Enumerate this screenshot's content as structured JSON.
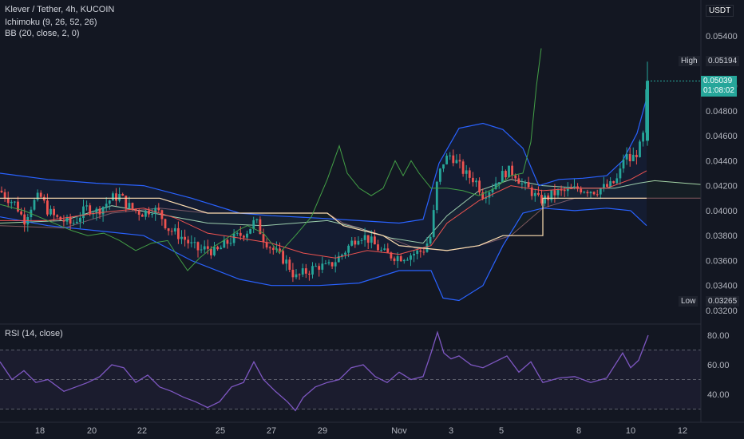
{
  "header": {
    "symbol_line": "Klever / Tether, 4h, KUCOIN",
    "ichimoku_label": "Ichimoku (9, 26, 52, 26)",
    "bb_label": "BB (20, close, 2, 0)",
    "rsi_label": "RSI (14, close)"
  },
  "price_axis": {
    "currency": "USDT",
    "ticks": [
      "0.05400",
      "0.05200",
      "0.05000",
      "0.04800",
      "0.04600",
      "0.04400",
      "0.04200",
      "0.04000",
      "0.03800",
      "0.03600",
      "0.03400",
      "0.03200"
    ],
    "high_label": "High",
    "high_value": "0.05194",
    "low_label": "Low",
    "low_value": "0.03265",
    "last_price": "0.05039",
    "countdown": "01:08:02"
  },
  "rsi_axis": {
    "ticks": [
      "80.00",
      "60.00",
      "40.00"
    ]
  },
  "time_axis": {
    "ticks": [
      "18",
      "20",
      "22",
      "25",
      "27",
      "29",
      "Nov",
      "3",
      "5",
      "8",
      "10",
      "12"
    ]
  },
  "colors": {
    "up": "#26a69a",
    "down": "#ef5350",
    "bb": "#2962ff",
    "tenkan": "#ef5350",
    "kijun": "#ffe0b2",
    "chikou": "#43a047",
    "rsi": "#7e57c2",
    "background": "#131722"
  },
  "chart_data": [
    {
      "type": "candlestick",
      "title": "Klever / Tether, 4h, KUCOIN",
      "xlabel": "",
      "ylabel": "USDT",
      "ylim": [
        0.032,
        0.055
      ],
      "x_ticks": [
        "18",
        "20",
        "22",
        "25",
        "27",
        "29",
        "Nov",
        "3",
        "5",
        "8",
        "10",
        "12"
      ],
      "y_ticks": [
        0.054,
        0.052,
        0.05,
        0.048,
        0.046,
        0.044,
        0.042,
        0.04,
        0.038,
        0.036,
        0.034,
        0.032
      ],
      "high": 0.05194,
      "low": 0.03265,
      "last": 0.05039,
      "close_path": [
        [
          0,
          0.0416
        ],
        [
          10,
          0.041
        ],
        [
          20,
          0.0405
        ],
        [
          30,
          0.0392
        ],
        [
          40,
          0.0405
        ],
        [
          50,
          0.0412
        ],
        [
          60,
          0.04
        ],
        [
          70,
          0.0394
        ],
        [
          80,
          0.0392
        ],
        [
          90,
          0.0389
        ],
        [
          100,
          0.0396
        ],
        [
          110,
          0.0403
        ],
        [
          120,
          0.0399
        ],
        [
          130,
          0.0404
        ],
        [
          140,
          0.041
        ],
        [
          150,
          0.0412
        ],
        [
          160,
          0.0404
        ],
        [
          170,
          0.04
        ],
        [
          180,
          0.0398
        ],
        [
          190,
          0.0402
        ],
        [
          200,
          0.0398
        ],
        [
          210,
          0.0386
        ],
        [
          220,
          0.0382
        ],
        [
          230,
          0.0378
        ],
        [
          240,
          0.0372
        ],
        [
          250,
          0.0368
        ],
        [
          260,
          0.037
        ],
        [
          270,
          0.0366
        ],
        [
          280,
          0.0372
        ],
        [
          290,
          0.0377
        ],
        [
          300,
          0.038
        ],
        [
          310,
          0.0384
        ],
        [
          320,
          0.0392
        ],
        [
          330,
          0.0378
        ],
        [
          340,
          0.037
        ],
        [
          350,
          0.0364
        ],
        [
          360,
          0.0358
        ],
        [
          370,
          0.0346
        ],
        [
          380,
          0.035
        ],
        [
          390,
          0.0353
        ],
        [
          400,
          0.0356
        ],
        [
          410,
          0.0354
        ],
        [
          420,
          0.036
        ],
        [
          430,
          0.0366
        ],
        [
          440,
          0.0374
        ],
        [
          450,
          0.0381
        ],
        [
          460,
          0.0378
        ],
        [
          470,
          0.0372
        ],
        [
          480,
          0.0366
        ],
        [
          490,
          0.0364
        ],
        [
          500,
          0.0363
        ],
        [
          510,
          0.0364
        ],
        [
          520,
          0.0366
        ],
        [
          530,
          0.0368
        ],
        [
          540,
          0.038
        ],
        [
          548,
          0.0425
        ],
        [
          556,
          0.044
        ],
        [
          565,
          0.0445
        ],
        [
          575,
          0.0436
        ],
        [
          585,
          0.0428
        ],
        [
          595,
          0.0425
        ],
        [
          605,
          0.0413
        ],
        [
          615,
          0.0418
        ],
        [
          625,
          0.0426
        ],
        [
          635,
          0.0432
        ],
        [
          645,
          0.043
        ],
        [
          655,
          0.042
        ],
        [
          665,
          0.0416
        ],
        [
          675,
          0.0408
        ],
        [
          685,
          0.041
        ],
        [
          695,
          0.0414
        ],
        [
          705,
          0.0415
        ],
        [
          715,
          0.0416
        ],
        [
          725,
          0.0418
        ],
        [
          735,
          0.0417
        ],
        [
          745,
          0.0416
        ],
        [
          755,
          0.0418
        ],
        [
          765,
          0.042
        ],
        [
          775,
          0.0426
        ],
        [
          782,
          0.0445
        ],
        [
          790,
          0.044
        ],
        [
          798,
          0.0447
        ],
        [
          805,
          0.0455
        ],
        [
          811,
          0.0504
        ]
      ],
      "series": [
        {
          "name": "BB (20, close, 2, 0)",
          "upper": [
            [
              0,
              0.043
            ],
            [
              60,
              0.0425
            ],
            [
              120,
              0.0422
            ],
            [
              180,
              0.042
            ],
            [
              240,
              0.041
            ],
            [
              300,
              0.0398
            ],
            [
              340,
              0.0396
            ],
            [
              400,
              0.0394
            ],
            [
              450,
              0.0392
            ],
            [
              500,
              0.039
            ],
            [
              530,
              0.0393
            ],
            [
              550,
              0.0438
            ],
            [
              575,
              0.0466
            ],
            [
              605,
              0.047
            ],
            [
              630,
              0.0465
            ],
            [
              655,
              0.045
            ],
            [
              675,
              0.042
            ],
            [
              700,
              0.0425
            ],
            [
              730,
              0.0426
            ],
            [
              760,
              0.0428
            ],
            [
              780,
              0.044
            ],
            [
              798,
              0.0462
            ],
            [
              810,
              0.049
            ]
          ]
        },
        {
          "name": "BB lower",
          "lower": [
            [
              0,
              0.0395
            ],
            [
              60,
              0.0388
            ],
            [
              120,
              0.0384
            ],
            [
              180,
              0.038
            ],
            [
              240,
              0.036
            ],
            [
              300,
              0.0345
            ],
            [
              340,
              0.034
            ],
            [
              400,
              0.034
            ],
            [
              450,
              0.0342
            ],
            [
              500,
              0.0352
            ],
            [
              540,
              0.0352
            ],
            [
              555,
              0.033
            ],
            [
              575,
              0.0328
            ],
            [
              605,
              0.034
            ],
            [
              630,
              0.0372
            ],
            [
              655,
              0.0398
            ],
            [
              680,
              0.0402
            ],
            [
              720,
              0.04
            ],
            [
              760,
              0.0402
            ],
            [
              790,
              0.04
            ],
            [
              810,
              0.0388
            ]
          ]
        },
        {
          "name": "Kijun",
          "values": [
            [
              0,
              0.041
            ],
            [
              100,
              0.041
            ],
            [
              200,
              0.041
            ],
            [
              260,
              0.0398
            ],
            [
              410,
              0.0398
            ],
            [
              430,
              0.0388
            ],
            [
              480,
              0.038
            ],
            [
              500,
              0.0372
            ],
            [
              530,
              0.037
            ],
            [
              560,
              0.0368
            ],
            [
              600,
              0.0372
            ],
            [
              630,
              0.038
            ],
            [
              680,
              0.038
            ],
            [
              680,
              0.041
            ],
            [
              810,
              0.041
            ]
          ]
        }
      ]
    },
    {
      "type": "line",
      "title": "RSI (14, close)",
      "xlabel": "",
      "ylabel": "",
      "ylim": [
        25,
        90
      ],
      "y_ticks": [
        80,
        60,
        40
      ],
      "series": [
        {
          "name": "RSI (14, close)",
          "values": [
            [
              0,
              62
            ],
            [
              15,
              50
            ],
            [
              30,
              56
            ],
            [
              45,
              48
            ],
            [
              60,
              50
            ],
            [
              80,
              42
            ],
            [
              95,
              45
            ],
            [
              110,
              48
            ],
            [
              125,
              52
            ],
            [
              140,
              60
            ],
            [
              155,
              58
            ],
            [
              170,
              48
            ],
            [
              185,
              53
            ],
            [
              200,
              45
            ],
            [
              215,
              42
            ],
            [
              230,
              38
            ],
            [
              245,
              35
            ],
            [
              260,
              31
            ],
            [
              275,
              35
            ],
            [
              290,
              45
            ],
            [
              305,
              48
            ],
            [
              318,
              62
            ],
            [
              330,
              50
            ],
            [
              345,
              42
            ],
            [
              360,
              35
            ],
            [
              370,
              29
            ],
            [
              380,
              38
            ],
            [
              395,
              45
            ],
            [
              410,
              48
            ],
            [
              425,
              50
            ],
            [
              440,
              58
            ],
            [
              455,
              60
            ],
            [
              470,
              52
            ],
            [
              485,
              48
            ],
            [
              500,
              55
            ],
            [
              515,
              50
            ],
            [
              530,
              52
            ],
            [
              540,
              68
            ],
            [
              548,
              82
            ],
            [
              556,
              68
            ],
            [
              565,
              64
            ],
            [
              575,
              66
            ],
            [
              590,
              60
            ],
            [
              605,
              58
            ],
            [
              620,
              62
            ],
            [
              635,
              66
            ],
            [
              650,
              55
            ],
            [
              665,
              62
            ],
            [
              680,
              48
            ],
            [
              700,
              51
            ],
            [
              720,
              52
            ],
            [
              740,
              48
            ],
            [
              760,
              51
            ],
            [
              780,
              68
            ],
            [
              790,
              58
            ],
            [
              800,
              63
            ],
            [
              812,
              80
            ]
          ]
        }
      ]
    }
  ]
}
